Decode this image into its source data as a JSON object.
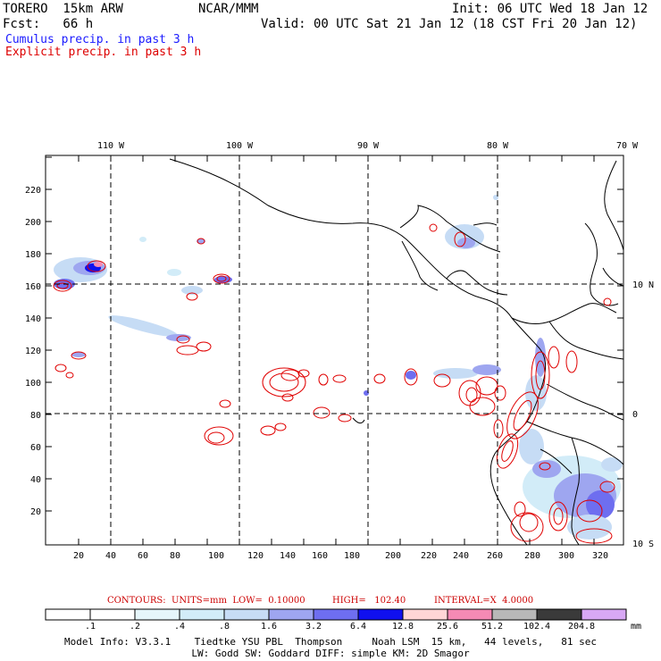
{
  "header": {
    "model": "TORERO  15km ARW",
    "org": "NCAR/MMM",
    "init": "Init: 06 UTC Wed 18 Jan 12",
    "fcst": "Fcst:   66 h",
    "valid": "Valid: 00 UTC Sat 21 Jan 12 (18 CST Fri 20 Jan 12)",
    "field1": "Cumulus precip. in past 3 h",
    "field2": "Explicit precip. in past 3 h",
    "field1_color": "#1a1aff",
    "field2_color": "#dd0000"
  },
  "map": {
    "top_lon_labels": [
      "110 W",
      "100 W",
      "90 W",
      "80 W",
      "70 W"
    ],
    "right_lat_labels": [
      "10 N",
      "0",
      "10 S"
    ],
    "x_ticks": [
      "20",
      "40",
      "60",
      "80",
      "100",
      "120",
      "140",
      "160",
      "180",
      "200",
      "220",
      "240",
      "260",
      "280",
      "300",
      "320"
    ],
    "y_ticks": [
      "20",
      "40",
      "60",
      "80",
      "100",
      "120",
      "140",
      "160",
      "180",
      "200",
      "220"
    ]
  },
  "contours": {
    "label": "CONTOURS:  UNITS=mm  LOW=  0.10000",
    "high": "HIGH=   102.40",
    "interval": "INTERVAL=X  4.0000"
  },
  "colorbar": {
    "labels": [
      ".1",
      ".2",
      ".4",
      ".8",
      "1.6",
      "3.2",
      "6.4",
      "12.8",
      "25.6",
      "51.2",
      "102.4",
      "204.8"
    ],
    "unit": "mm",
    "colors": [
      "#ffffff",
      "#ffffff",
      "#e6f6fb",
      "#d2ecf8",
      "#c6dcf5",
      "#9ea6f0",
      "#6e6ef0",
      "#1010ee",
      "#ffd6d6",
      "#f58ab4",
      "#b8b8b8",
      "#3a3a3a",
      "#d8a8f5"
    ]
  },
  "model_info": {
    "line1": "Model Info: V3.3.1    Tiedtke YSU PBL  Thompson     Noah LSM  15 km,   44 levels,   81 sec",
    "line2": "LW: Godd SW: Goddard DIFF: simple KM: 2D Smagor"
  }
}
